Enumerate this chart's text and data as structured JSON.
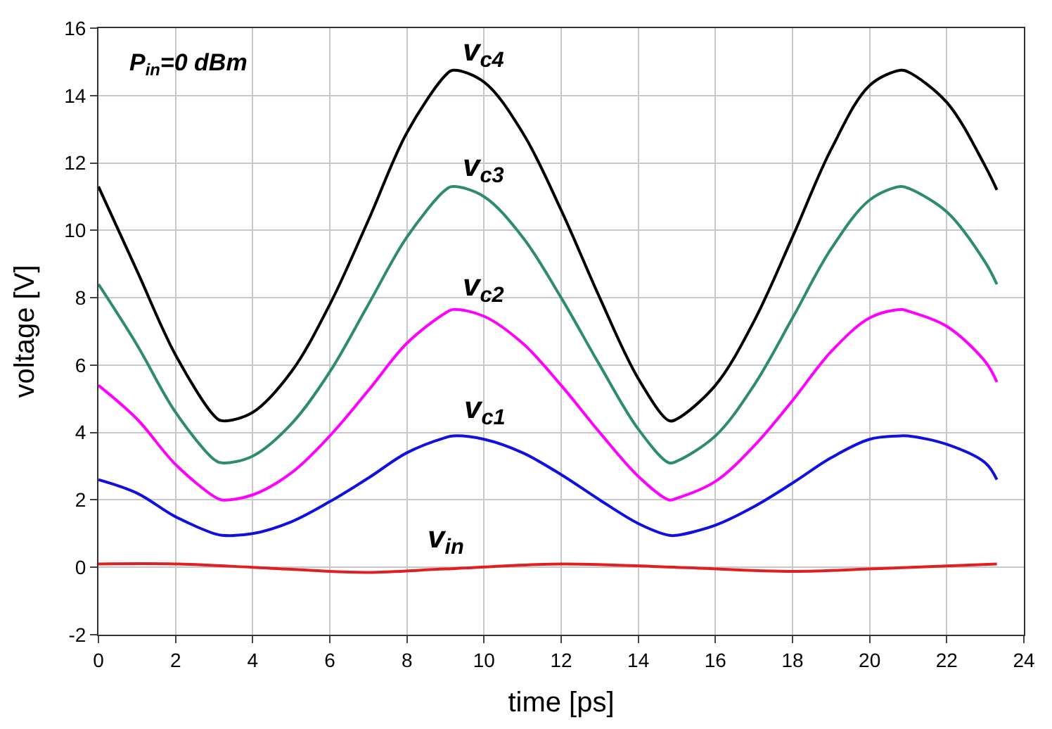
{
  "chart_data": {
    "type": "line",
    "xlabel": "time [ps]",
    "ylabel": "voltage [V]",
    "annotations": [
      "P$_{in}$=0 dBm"
    ],
    "series": [
      {
        "name": "v$_{c4}$",
        "color": "#000000",
        "x": [
          0,
          1,
          2,
          3,
          3.2,
          4,
          5,
          6,
          7,
          8,
          9,
          9.2,
          10,
          11,
          12,
          13,
          14,
          14.8,
          15,
          16,
          17,
          18,
          19,
          20,
          20.8,
          21,
          22,
          23,
          23.3
        ],
        "values": [
          11.3,
          8.8,
          6.3,
          4.5,
          4.35,
          4.6,
          5.8,
          7.8,
          10.3,
          12.9,
          14.6,
          14.75,
          14.4,
          12.9,
          10.6,
          8.0,
          5.6,
          4.35,
          4.4,
          5.4,
          7.3,
          9.8,
          12.4,
          14.3,
          14.75,
          14.7,
          13.8,
          11.9,
          11.2
        ]
      },
      {
        "name": "v$_{c3}$",
        "color": "#2e8b6e",
        "x": [
          0,
          1,
          2,
          3,
          3.2,
          4,
          5,
          6,
          7,
          8,
          9,
          9.2,
          10,
          11,
          12,
          13,
          14,
          14.8,
          15,
          16,
          17,
          18,
          19,
          20,
          20.8,
          21,
          22,
          23,
          23.3
        ],
        "values": [
          8.4,
          6.6,
          4.6,
          3.2,
          3.1,
          3.3,
          4.25,
          5.8,
          7.8,
          9.8,
          11.2,
          11.3,
          11.0,
          9.8,
          8.0,
          6.0,
          4.1,
          3.1,
          3.15,
          3.9,
          5.4,
          7.4,
          9.45,
          10.9,
          11.3,
          11.25,
          10.55,
          9.05,
          8.4
        ]
      },
      {
        "name": "v$_{c2}$",
        "color": "#ff00ff",
        "x": [
          0,
          1,
          2,
          3,
          3.2,
          4,
          5,
          6,
          7,
          8,
          9,
          9.2,
          10,
          11,
          12,
          13,
          14,
          14.8,
          15,
          16,
          17,
          18,
          19,
          20,
          20.8,
          21,
          22,
          23,
          23.3
        ],
        "values": [
          5.4,
          4.4,
          3.05,
          2.1,
          2.0,
          2.15,
          2.8,
          3.9,
          5.25,
          6.65,
          7.55,
          7.65,
          7.45,
          6.65,
          5.4,
          4.0,
          2.7,
          2.0,
          2.05,
          2.55,
          3.6,
          4.95,
          6.4,
          7.4,
          7.65,
          7.6,
          7.15,
          6.1,
          5.5
        ]
      },
      {
        "name": "v$_{c1}$",
        "color": "#1010e0",
        "x": [
          0,
          1,
          2,
          3,
          3.2,
          4,
          5,
          6,
          7,
          8,
          9,
          9.2,
          10,
          11,
          12,
          13,
          14,
          14.8,
          15,
          16,
          17,
          18,
          19,
          20,
          20.8,
          21,
          22,
          23,
          23.3
        ],
        "values": [
          2.6,
          2.2,
          1.5,
          1.0,
          0.95,
          1.0,
          1.35,
          1.95,
          2.65,
          3.4,
          3.85,
          3.9,
          3.8,
          3.4,
          2.75,
          2.0,
          1.3,
          0.95,
          0.95,
          1.25,
          1.8,
          2.5,
          3.25,
          3.8,
          3.9,
          3.9,
          3.65,
          3.1,
          2.6
        ]
      },
      {
        "name": "v$_{in}$",
        "color": "#e02020",
        "x": [
          0,
          2,
          4,
          6,
          7,
          9,
          12,
          15,
          18,
          20,
          23.3
        ],
        "values": [
          0.1,
          0.1,
          0,
          -0.12,
          -0.15,
          -0.05,
          0.1,
          0,
          -0.12,
          -0.05,
          0.1
        ]
      }
    ],
    "xlim": [
      0,
      24
    ],
    "xticks": [
      0,
      2,
      4,
      6,
      8,
      10,
      12,
      14,
      16,
      18,
      20,
      22,
      24
    ],
    "ylim": [
      -2,
      16
    ],
    "yticks": [
      -2,
      0,
      2,
      4,
      6,
      8,
      10,
      12,
      14,
      16
    ],
    "grid": true,
    "legend": false,
    "marker": "none",
    "line_style": "solid"
  }
}
